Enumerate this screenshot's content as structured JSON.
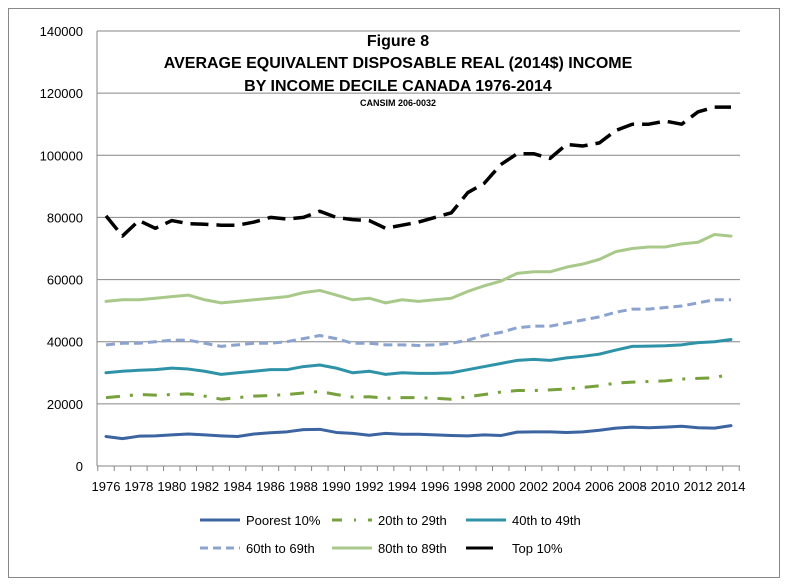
{
  "chart_data": {
    "type": "line",
    "title_lines": [
      "Figure 8",
      "AVERAGE EQUIVALENT DISPOSABLE REAL (2014$) INCOME",
      "BY INCOME DECILE CANADA 1976-2014"
    ],
    "subtitle": "CANSIM  206-0032",
    "xlabel": "",
    "ylabel": "",
    "ylim": [
      0,
      140000
    ],
    "yticks": [
      "0",
      "20000",
      "40000",
      "60000",
      "80000",
      "100000",
      "120000",
      "140000"
    ],
    "xtick_labels": [
      "1976",
      "1978",
      "1980",
      "1982",
      "1984",
      "1986",
      "1988",
      "1990",
      "1992",
      "1994",
      "1996",
      "1998",
      "2000",
      "2002",
      "2004",
      "2006",
      "2008",
      "2010",
      "2012",
      "2014"
    ],
    "grid": "horizontal",
    "legend_position": "bottom",
    "x": [
      1976,
      1977,
      1978,
      1979,
      1980,
      1981,
      1982,
      1983,
      1984,
      1985,
      1986,
      1987,
      1988,
      1989,
      1990,
      1991,
      1992,
      1993,
      1994,
      1995,
      1996,
      1997,
      1998,
      1999,
      2000,
      2001,
      2002,
      2003,
      2004,
      2005,
      2006,
      2007,
      2008,
      2009,
      2010,
      2011,
      2012,
      2013,
      2014
    ],
    "series": [
      {
        "name": "Poorest 10%",
        "color": "#3b64a0",
        "dash": "solid",
        "values": [
          9500,
          8800,
          9600,
          9700,
          10000,
          10300,
          10000,
          9700,
          9500,
          10300,
          10700,
          11000,
          11700,
          11800,
          10800,
          10500,
          9900,
          10500,
          10200,
          10200,
          10000,
          9800,
          9700,
          10000,
          9800,
          10900,
          11000,
          11000,
          10800,
          11000,
          11500,
          12200,
          12500,
          12300,
          12500,
          12800,
          12300,
          12200,
          13000
        ]
      },
      {
        "name": "20th to 29th",
        "color": "#77a13c",
        "dash": "dash-dot",
        "values": [
          22000,
          22500,
          23000,
          22800,
          23000,
          23200,
          22500,
          21500,
          22000,
          22500,
          22700,
          23000,
          23500,
          24000,
          23000,
          22200,
          22300,
          21800,
          22000,
          22000,
          21800,
          21500,
          22300,
          23000,
          23800,
          24300,
          24300,
          24500,
          24800,
          25300,
          25800,
          26700,
          27000,
          27200,
          27400,
          28000,
          28200,
          28400,
          29700
        ]
      },
      {
        "name": "40th to 49th",
        "color": "#2f93a8",
        "dash": "solid",
        "values": [
          30000,
          30500,
          30800,
          31000,
          31500,
          31200,
          30500,
          29500,
          30000,
          30500,
          31000,
          31000,
          32000,
          32500,
          31500,
          30000,
          30500,
          29500,
          30000,
          29800,
          29800,
          30000,
          31000,
          32000,
          33000,
          34000,
          34300,
          34000,
          34800,
          35300,
          36000,
          37300,
          38500,
          38600,
          38700,
          39000,
          39700,
          40000,
          40700
        ]
      },
      {
        "name": "60th to 69th",
        "color": "#8ca3d0",
        "dash": "dash",
        "values": [
          39000,
          39500,
          39500,
          40000,
          40500,
          40500,
          39500,
          38500,
          39000,
          39500,
          39500,
          40000,
          41000,
          42000,
          41000,
          39500,
          39500,
          39000,
          39000,
          38800,
          39000,
          39500,
          40500,
          42000,
          43000,
          44500,
          45000,
          45000,
          46000,
          47000,
          48000,
          49500,
          50500,
          50500,
          51000,
          51500,
          52500,
          53500,
          53500
        ]
      },
      {
        "name": "80th to 89th",
        "color": "#a9c98a",
        "dash": "solid",
        "values": [
          53000,
          53500,
          53500,
          54000,
          54500,
          55000,
          53500,
          52500,
          53000,
          53500,
          54000,
          54500,
          55800,
          56500,
          55000,
          53500,
          54000,
          52500,
          53500,
          53000,
          53500,
          54000,
          56200,
          58000,
          59500,
          62000,
          62500,
          62500,
          64000,
          65000,
          66500,
          69000,
          70000,
          70500,
          70500,
          71500,
          72000,
          74500,
          74000
        ]
      },
      {
        "name": "Top 10%",
        "color": "#000000",
        "dash": "long-dash",
        "values": [
          80500,
          74000,
          79000,
          76500,
          79000,
          78000,
          77800,
          77500,
          77500,
          78500,
          80000,
          79500,
          80000,
          82000,
          80000,
          79300,
          79000,
          76500,
          77500,
          78500,
          80000,
          81500,
          88000,
          91000,
          97000,
          100500,
          100500,
          99000,
          103500,
          103000,
          104000,
          108000,
          110000,
          110000,
          111000,
          110000,
          114000,
          115500,
          115500
        ]
      }
    ]
  }
}
